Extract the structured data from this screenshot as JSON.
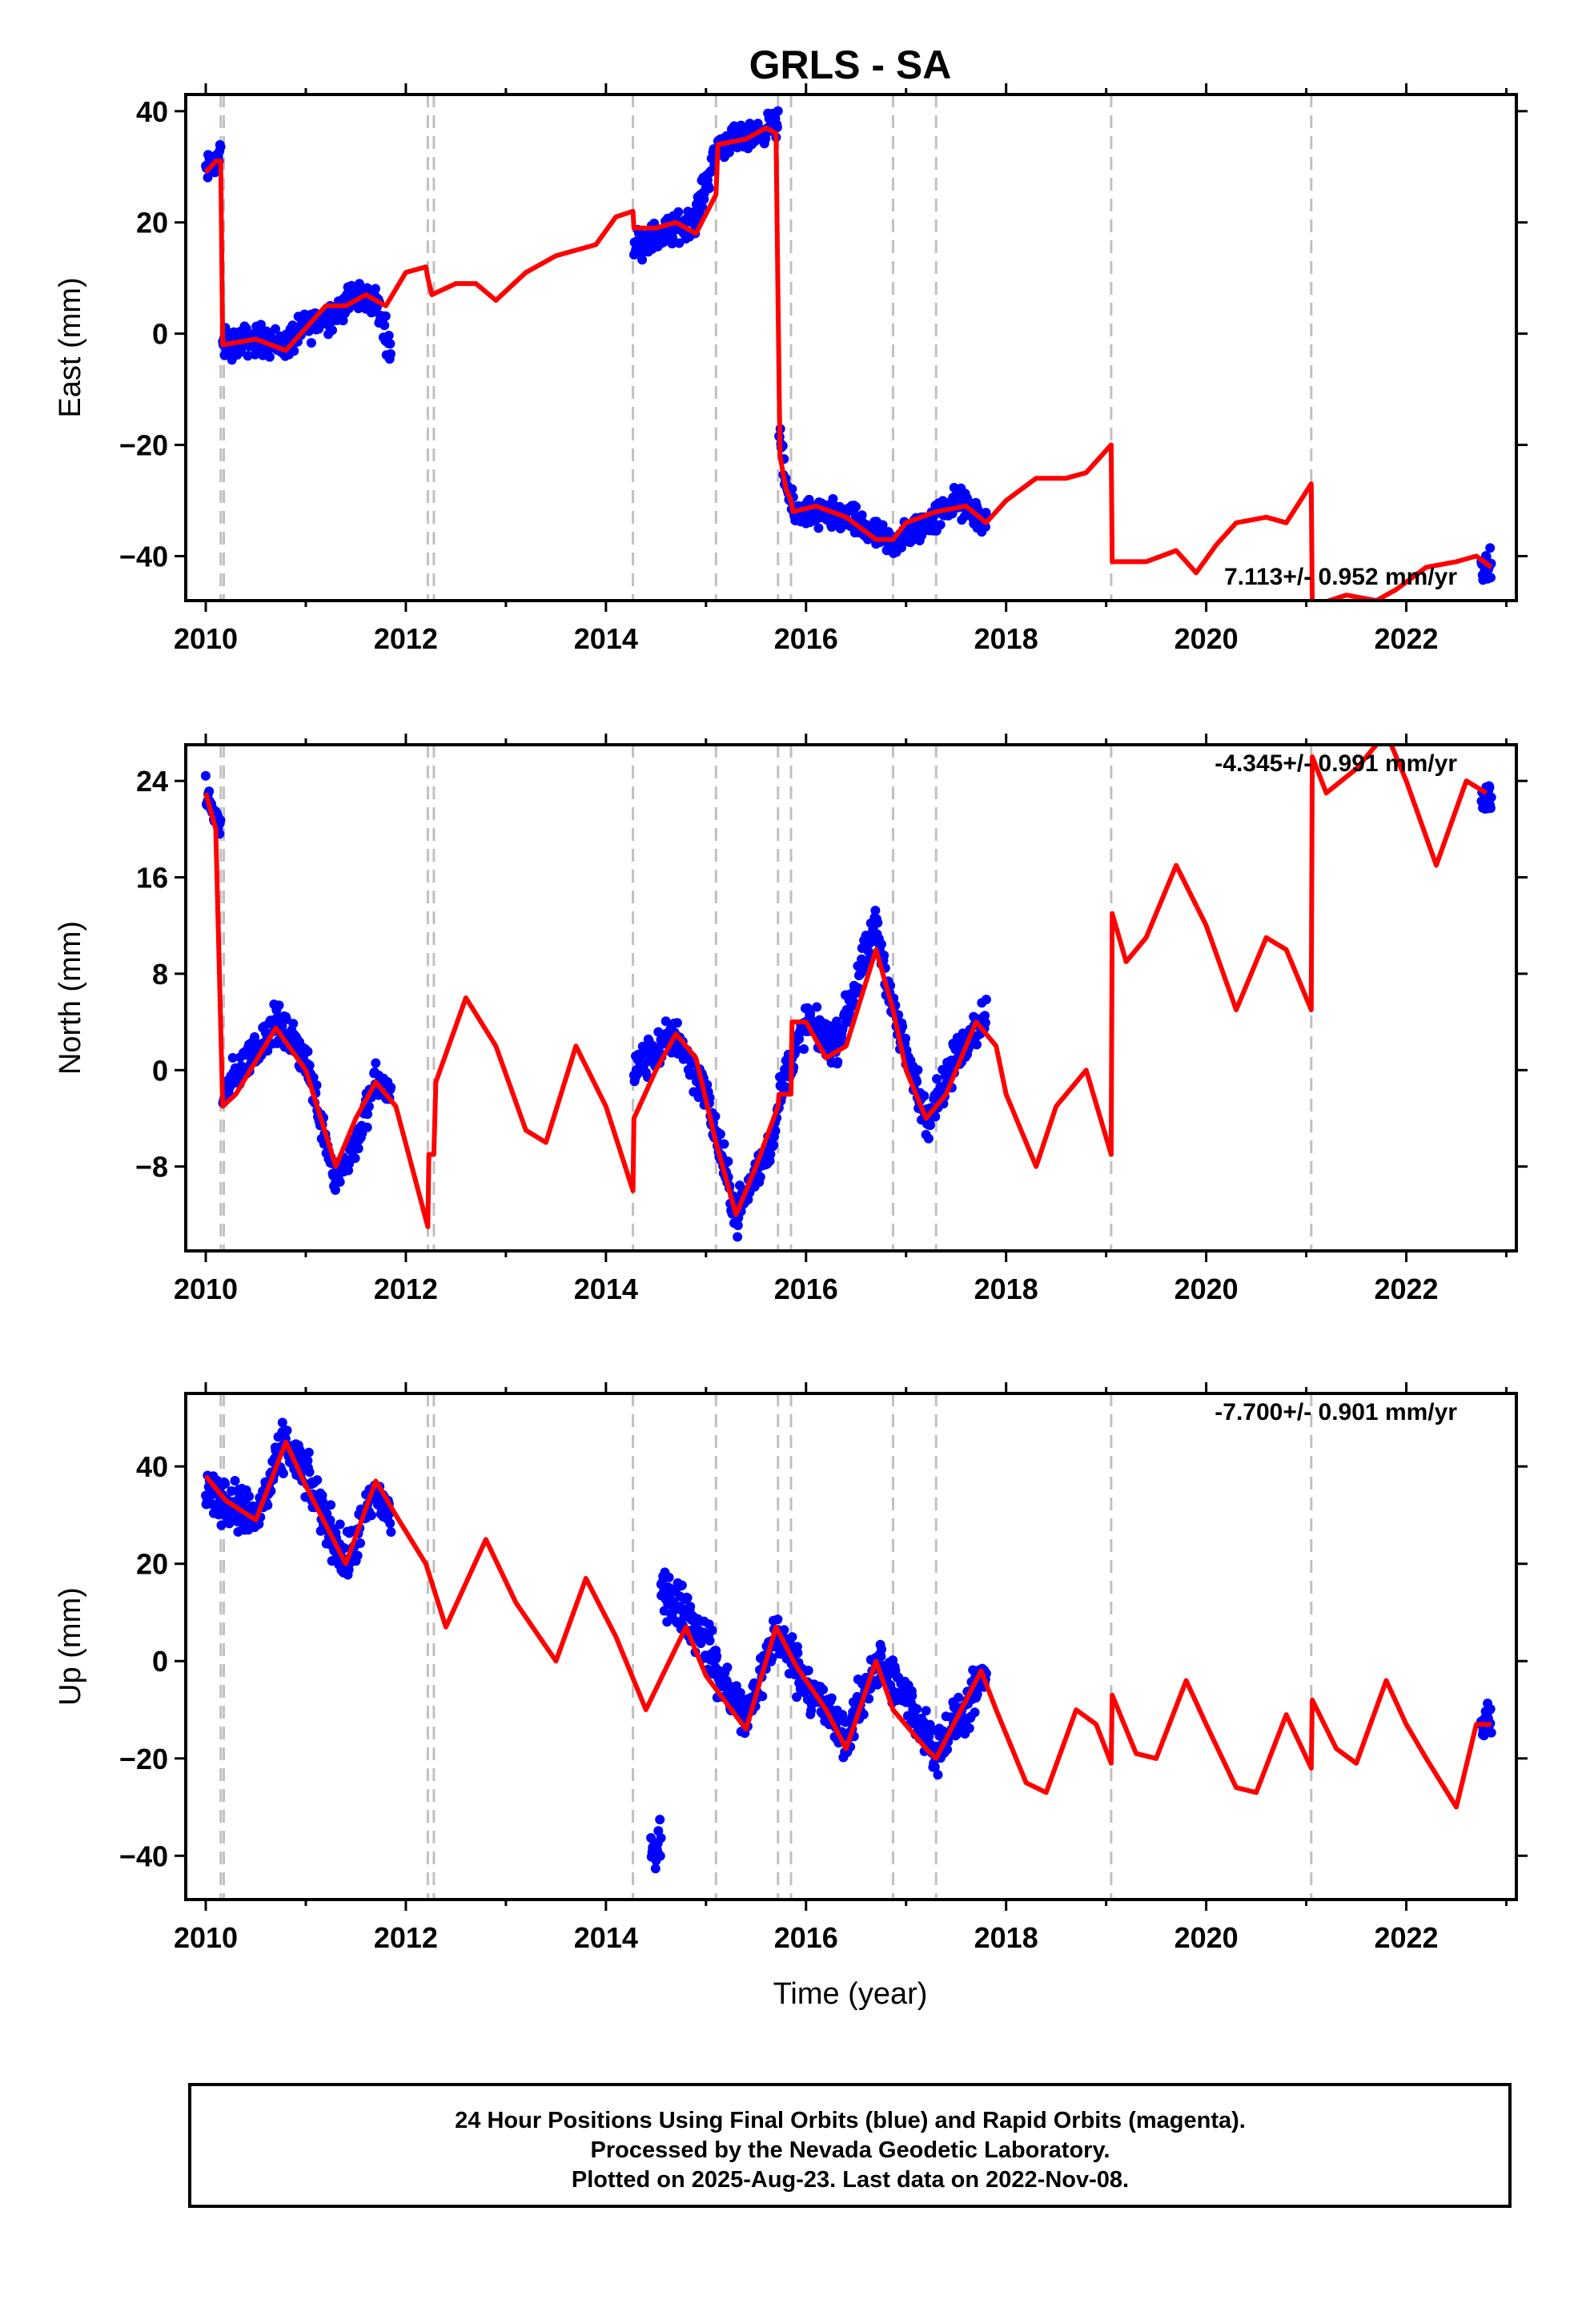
{
  "title": "GRLS - SA",
  "xlabel": "Time (year)",
  "footer": {
    "lines": [
      "24 Hour Positions Using Final Orbits (blue) and Rapid Orbits (magenta).",
      "Processed by the Nevada Geodetic Laboratory.",
      "Plotted on 2025-Aug-23. Last data on 2022-Nov-08."
    ]
  },
  "colors": {
    "observations": "#0000ff",
    "model": "#ff0000",
    "events": "#c0c0c0",
    "frame": "#000000"
  },
  "chart_data": [
    {
      "type": "scatter",
      "name": "east",
      "ylabel": "East (mm)",
      "rate_text": "7.113+/- 0.952 mm/yr",
      "xlim": [
        2009.8,
        2023.1
      ],
      "ylim": [
        -48,
        43
      ],
      "xticks": [
        2010,
        2012,
        2014,
        2016,
        2018,
        2020,
        2022
      ],
      "yticks": [
        40,
        20,
        0,
        -20,
        -40
      ],
      "event_lines": [
        2010.15,
        2010.18,
        2012.22,
        2012.28,
        2014.27,
        2015.1,
        2015.72,
        2015.85,
        2016.87,
        2017.3,
        2019.05,
        2021.05
      ],
      "model": [
        [
          2010.0,
          29
        ],
        [
          2010.1,
          31
        ],
        [
          2010.15,
          31
        ],
        [
          2010.17,
          -2
        ],
        [
          2010.5,
          -1
        ],
        [
          2010.8,
          -3
        ],
        [
          2011.0,
          1
        ],
        [
          2011.2,
          5
        ],
        [
          2011.4,
          5
        ],
        [
          2011.6,
          7
        ],
        [
          2011.8,
          5
        ],
        [
          2012.0,
          11
        ],
        [
          2012.2,
          12
        ],
        [
          2012.22,
          10
        ],
        [
          2012.26,
          7
        ],
        [
          2012.5,
          9
        ],
        [
          2012.7,
          9
        ],
        [
          2012.9,
          6
        ],
        [
          2013.2,
          11
        ],
        [
          2013.5,
          14
        ],
        [
          2013.9,
          16
        ],
        [
          2014.1,
          21
        ],
        [
          2014.27,
          22
        ],
        [
          2014.28,
          19
        ],
        [
          2014.5,
          19
        ],
        [
          2014.7,
          20
        ],
        [
          2014.9,
          18
        ],
        [
          2015.1,
          25
        ],
        [
          2015.12,
          34
        ],
        [
          2015.4,
          35
        ],
        [
          2015.6,
          37
        ],
        [
          2015.7,
          36
        ],
        [
          2015.72,
          6
        ],
        [
          2015.74,
          -22
        ],
        [
          2015.8,
          -28
        ],
        [
          2015.85,
          -30
        ],
        [
          2015.87,
          -32
        ],
        [
          2016.1,
          -31
        ],
        [
          2016.4,
          -33
        ],
        [
          2016.7,
          -37
        ],
        [
          2016.87,
          -37
        ],
        [
          2017.0,
          -34
        ],
        [
          2017.3,
          -32
        ],
        [
          2017.6,
          -31
        ],
        [
          2017.8,
          -34
        ],
        [
          2018.0,
          -30
        ],
        [
          2018.3,
          -26
        ],
        [
          2018.6,
          -26
        ],
        [
          2018.8,
          -25
        ],
        [
          2019.05,
          -20
        ],
        [
          2019.06,
          -41
        ],
        [
          2019.4,
          -41
        ],
        [
          2019.7,
          -39
        ],
        [
          2019.9,
          -43
        ],
        [
          2020.1,
          -38
        ],
        [
          2020.3,
          -34
        ],
        [
          2020.6,
          -33
        ],
        [
          2020.8,
          -34
        ],
        [
          2021.05,
          -27
        ],
        [
          2021.06,
          -49
        ],
        [
          2021.4,
          -47
        ],
        [
          2021.7,
          -48
        ],
        [
          2021.9,
          -46
        ],
        [
          2022.2,
          -42
        ],
        [
          2022.5,
          -41
        ],
        [
          2022.7,
          -40
        ],
        [
          2022.85,
          -42
        ]
      ],
      "observations": [
        {
          "start": 2010.0,
          "end": 2010.15,
          "points": [
            [
              2010.0,
              29
            ],
            [
              2010.15,
              32
            ]
          ],
          "scatter": 2.5
        },
        {
          "start": 2010.17,
          "end": 2011.85,
          "points": [
            [
              2010.17,
              -2
            ],
            [
              2010.5,
              -1
            ],
            [
              2010.8,
              -2
            ],
            [
              2011.0,
              1
            ],
            [
              2011.3,
              4
            ],
            [
              2011.5,
              7
            ],
            [
              2011.7,
              6
            ],
            [
              2011.85,
              -3
            ]
          ],
          "scatter": 2.5
        },
        {
          "start": 2014.28,
          "end": 2015.1,
          "points": [
            [
              2014.28,
              16
            ],
            [
              2014.6,
              18
            ],
            [
              2014.9,
              21
            ],
            [
              2015.1,
              33
            ]
          ],
          "scatter": 2.5
        },
        {
          "start": 2015.12,
          "end": 2015.72,
          "points": [
            [
              2015.12,
              34
            ],
            [
              2015.4,
              35
            ],
            [
              2015.72,
              38
            ]
          ],
          "scatter": 2.2
        },
        {
          "start": 2015.73,
          "end": 2017.8,
          "points": [
            [
              2015.73,
              -18
            ],
            [
              2015.8,
              -27
            ],
            [
              2015.87,
              -32
            ],
            [
              2016.4,
              -33
            ],
            [
              2016.85,
              -38
            ],
            [
              2017.3,
              -33
            ],
            [
              2017.5,
              -30
            ],
            [
              2017.8,
              -34
            ]
          ],
          "scatter": 2.5
        },
        {
          "start": 2022.75,
          "end": 2022.85,
          "points": [
            [
              2022.75,
              -42
            ],
            [
              2022.85,
              -42
            ]
          ],
          "scatter": 2.5
        }
      ]
    },
    {
      "type": "scatter",
      "name": "north",
      "ylabel": "North (mm)",
      "rate_text": "-4.345+/- 0.991 mm/yr",
      "xlim": [
        2009.8,
        2023.1
      ],
      "ylim": [
        -15,
        27
      ],
      "xticks": [
        2010,
        2012,
        2014,
        2016,
        2018,
        2020,
        2022
      ],
      "yticks": [
        24,
        16,
        8,
        0,
        -8
      ],
      "event_lines": [
        2010.15,
        2010.18,
        2012.22,
        2012.28,
        2014.27,
        2015.1,
        2015.72,
        2015.85,
        2016.87,
        2017.3,
        2019.05,
        2021.05
      ],
      "model": [
        [
          2010.0,
          23
        ],
        [
          2010.1,
          20
        ],
        [
          2010.17,
          -3
        ],
        [
          2010.3,
          -2
        ],
        [
          2010.7,
          3.5
        ],
        [
          2011.0,
          0
        ],
        [
          2011.3,
          -8
        ],
        [
          2011.5,
          -4
        ],
        [
          2011.7,
          -1
        ],
        [
          2011.9,
          -3
        ],
        [
          2012.22,
          -13
        ],
        [
          2012.23,
          -7
        ],
        [
          2012.28,
          -7
        ],
        [
          2012.3,
          -1
        ],
        [
          2012.6,
          6
        ],
        [
          2012.9,
          2
        ],
        [
          2013.2,
          -5
        ],
        [
          2013.4,
          -6
        ],
        [
          2013.7,
          2
        ],
        [
          2014.0,
          -3
        ],
        [
          2014.27,
          -10
        ],
        [
          2014.28,
          -4
        ],
        [
          2014.5,
          0
        ],
        [
          2014.7,
          3
        ],
        [
          2014.9,
          1
        ],
        [
          2015.1,
          -6
        ],
        [
          2015.3,
          -12
        ],
        [
          2015.5,
          -8
        ],
        [
          2015.72,
          -3
        ],
        [
          2015.73,
          -2
        ],
        [
          2015.85,
          -2
        ],
        [
          2015.86,
          4
        ],
        [
          2016.0,
          4
        ],
        [
          2016.2,
          1
        ],
        [
          2016.4,
          2
        ],
        [
          2016.7,
          10
        ],
        [
          2016.87,
          5
        ],
        [
          2017.0,
          0
        ],
        [
          2017.2,
          -4
        ],
        [
          2017.4,
          -2
        ],
        [
          2017.7,
          4
        ],
        [
          2017.9,
          2
        ],
        [
          2018.0,
          -2
        ],
        [
          2018.3,
          -8
        ],
        [
          2018.5,
          -3
        ],
        [
          2018.8,
          0
        ],
        [
          2019.05,
          -7
        ],
        [
          2019.06,
          13
        ],
        [
          2019.2,
          9
        ],
        [
          2019.4,
          11
        ],
        [
          2019.7,
          17
        ],
        [
          2020.0,
          12
        ],
        [
          2020.3,
          5
        ],
        [
          2020.6,
          11
        ],
        [
          2020.8,
          10
        ],
        [
          2021.05,
          5
        ],
        [
          2021.06,
          26
        ],
        [
          2021.2,
          23
        ],
        [
          2021.5,
          25
        ],
        [
          2021.8,
          28
        ],
        [
          2022.0,
          24
        ],
        [
          2022.3,
          17
        ],
        [
          2022.6,
          24
        ],
        [
          2022.8,
          23
        ]
      ],
      "observations": [
        {
          "start": 2010.0,
          "end": 2010.15,
          "points": [
            [
              2010.0,
              23
            ],
            [
              2010.15,
              20
            ]
          ],
          "scatter": 1.2
        },
        {
          "start": 2010.17,
          "end": 2011.85,
          "points": [
            [
              2010.17,
              -2
            ],
            [
              2010.7,
              4
            ],
            [
              2011.0,
              1
            ],
            [
              2011.3,
              -9
            ],
            [
              2011.5,
              -6
            ],
            [
              2011.7,
              -1
            ],
            [
              2011.85,
              -2
            ]
          ],
          "scatter": 1.4
        },
        {
          "start": 2014.28,
          "end": 2015.72,
          "points": [
            [
              2014.28,
              0
            ],
            [
              2014.7,
              3
            ],
            [
              2015.0,
              -2
            ],
            [
              2015.3,
              -12
            ],
            [
              2015.6,
              -7
            ],
            [
              2015.72,
              -4
            ]
          ],
          "scatter": 1.5
        },
        {
          "start": 2015.73,
          "end": 2017.8,
          "points": [
            [
              2015.73,
              -2
            ],
            [
              2016.0,
              4
            ],
            [
              2016.3,
              2
            ],
            [
              2016.7,
              12
            ],
            [
              2016.87,
              5
            ],
            [
              2017.2,
              -4
            ],
            [
              2017.5,
              1
            ],
            [
              2017.8,
              5
            ]
          ],
          "scatter": 1.5
        },
        {
          "start": 2022.75,
          "end": 2022.85,
          "points": [
            [
              2022.75,
              22
            ],
            [
              2022.85,
              23
            ]
          ],
          "scatter": 2.0
        }
      ]
    },
    {
      "type": "scatter",
      "name": "up",
      "ylabel": "Up (mm)",
      "rate_text": "-7.700+/- 0.901 mm/yr",
      "xlim": [
        2009.8,
        2023.1
      ],
      "ylim": [
        -49,
        55
      ],
      "xticks": [
        2010,
        2012,
        2014,
        2016,
        2018,
        2020,
        2022
      ],
      "yticks": [
        40,
        20,
        0,
        -20,
        -40
      ],
      "event_lines": [
        2010.15,
        2010.18,
        2012.22,
        2012.28,
        2014.27,
        2015.1,
        2015.72,
        2015.85,
        2016.87,
        2017.3,
        2019.05,
        2021.05
      ],
      "model": [
        [
          2010.0,
          38
        ],
        [
          2010.2,
          33
        ],
        [
          2010.5,
          29
        ],
        [
          2010.8,
          45
        ],
        [
          2011.0,
          36
        ],
        [
          2011.4,
          20
        ],
        [
          2011.7,
          37
        ],
        [
          2011.9,
          30
        ],
        [
          2012.2,
          20
        ],
        [
          2012.4,
          7
        ],
        [
          2012.8,
          25
        ],
        [
          2013.1,
          12
        ],
        [
          2013.5,
          0
        ],
        [
          2013.8,
          17
        ],
        [
          2014.1,
          5
        ],
        [
          2014.4,
          -10
        ],
        [
          2014.8,
          7
        ],
        [
          2015.0,
          -3
        ],
        [
          2015.4,
          -14
        ],
        [
          2015.7,
          7
        ],
        [
          2015.9,
          -1
        ],
        [
          2016.2,
          -10
        ],
        [
          2016.4,
          -18
        ],
        [
          2016.7,
          0
        ],
        [
          2016.87,
          -10
        ],
        [
          2017.2,
          -18
        ],
        [
          2017.3,
          -20
        ],
        [
          2017.5,
          -12
        ],
        [
          2017.75,
          -2
        ],
        [
          2017.9,
          -10
        ],
        [
          2018.2,
          -25
        ],
        [
          2018.4,
          -27
        ],
        [
          2018.7,
          -10
        ],
        [
          2018.9,
          -13
        ],
        [
          2019.05,
          -21
        ],
        [
          2019.06,
          -7
        ],
        [
          2019.3,
          -19
        ],
        [
          2019.5,
          -20
        ],
        [
          2019.8,
          -4
        ],
        [
          2020.0,
          -13
        ],
        [
          2020.3,
          -26
        ],
        [
          2020.5,
          -27
        ],
        [
          2020.8,
          -11
        ],
        [
          2021.05,
          -22
        ],
        [
          2021.06,
          -8
        ],
        [
          2021.3,
          -18
        ],
        [
          2021.5,
          -21
        ],
        [
          2021.8,
          -4
        ],
        [
          2022.0,
          -13
        ],
        [
          2022.2,
          -20
        ],
        [
          2022.5,
          -30
        ],
        [
          2022.7,
          -13
        ],
        [
          2022.85,
          -13
        ]
      ],
      "observations": [
        {
          "start": 2010.0,
          "end": 2011.85,
          "points": [
            [
              2010.0,
              35
            ],
            [
              2010.3,
              32
            ],
            [
              2010.5,
              29
            ],
            [
              2010.8,
              45
            ],
            [
              2011.0,
              38
            ],
            [
              2011.4,
              20
            ],
            [
              2011.7,
              35
            ],
            [
              2011.85,
              30
            ]
          ],
          "scatter": 4.5
        },
        {
          "start": 2014.45,
          "end": 2014.55,
          "points": [
            [
              2014.45,
              -40
            ],
            [
              2014.55,
              -38
            ]
          ],
          "scatter": 4.5
        },
        {
          "start": 2014.55,
          "end": 2015.1,
          "points": [
            [
              2014.55,
              15
            ],
            [
              2014.8,
              10
            ],
            [
              2015.1,
              0
            ]
          ],
          "scatter": 4.5
        },
        {
          "start": 2015.1,
          "end": 2017.8,
          "points": [
            [
              2015.1,
              -2
            ],
            [
              2015.4,
              -12
            ],
            [
              2015.7,
              6
            ],
            [
              2015.9,
              -1
            ],
            [
              2016.4,
              -16
            ],
            [
              2016.7,
              0
            ],
            [
              2017.0,
              -8
            ],
            [
              2017.3,
              -18
            ],
            [
              2017.6,
              -10
            ],
            [
              2017.8,
              -3
            ]
          ],
          "scatter": 4.5
        },
        {
          "start": 2022.75,
          "end": 2022.85,
          "points": [
            [
              2022.75,
              -14
            ],
            [
              2022.85,
              -12
            ]
          ],
          "scatter": 3.0
        }
      ]
    }
  ]
}
